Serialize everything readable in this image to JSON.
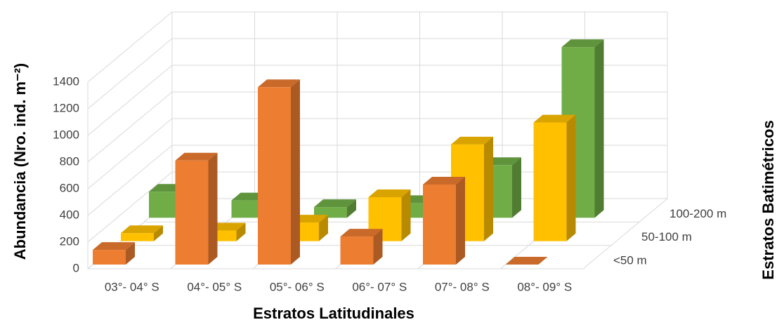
{
  "chart_data": {
    "type": "bar3d",
    "x_label": "Estratos Latitudinales",
    "y_label": "Abundancia (Nro. ind. m⁻²)",
    "z_label": "Estratos Batimétricos",
    "categories": [
      "03°- 04° S",
      "04°- 05° S",
      "05°- 06° S",
      "06°- 07° S",
      "07°- 08° S",
      "08°- 09° S"
    ],
    "series": [
      {
        "name": "<50 m",
        "color": "#ed7d31",
        "values": [
          110,
          780,
          1330,
          210,
          600,
          0
        ]
      },
      {
        "name": "50-100 m",
        "color": "#ffc000",
        "values": [
          60,
          80,
          140,
          330,
          725,
          890
        ]
      },
      {
        "name": "100-200 m",
        "color": "#70ad47",
        "values": [
          195,
          130,
          80,
          110,
          395,
          1280
        ]
      }
    ],
    "ylim": [
      0,
      1400
    ],
    "yticks": [
      0,
      200,
      400,
      600,
      800,
      1000,
      1200,
      1400
    ],
    "grid": true
  }
}
